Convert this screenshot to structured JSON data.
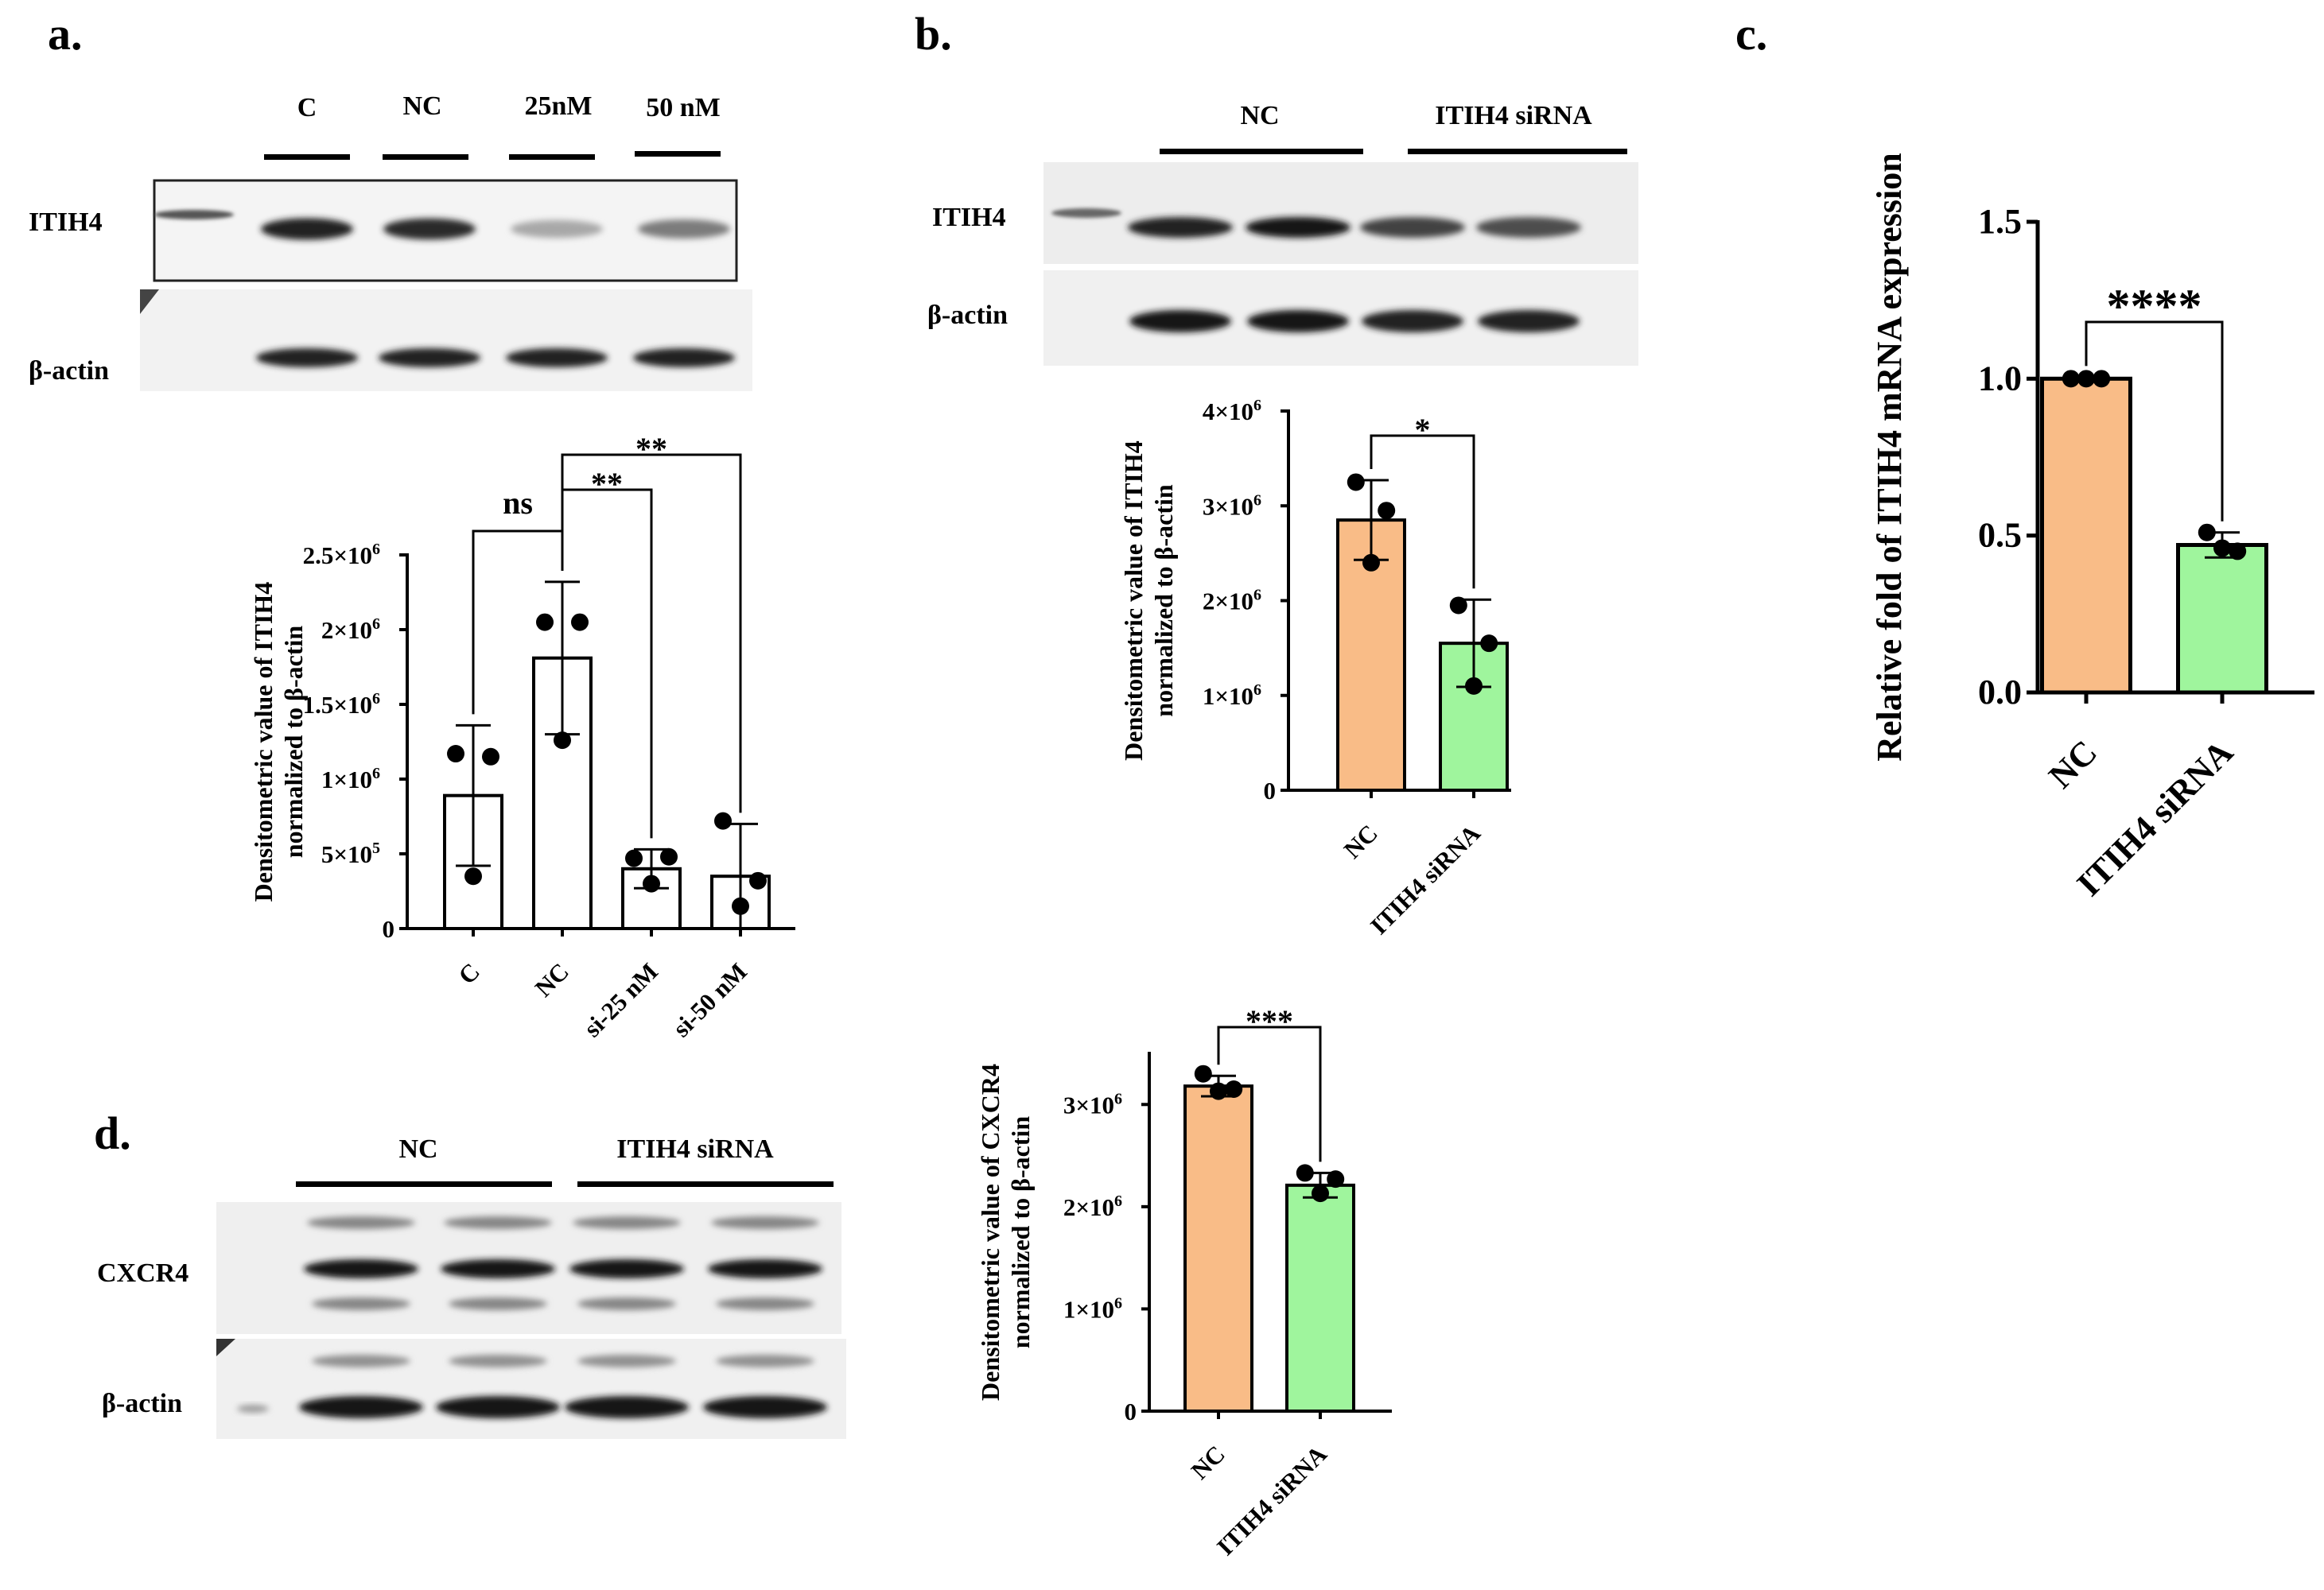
{
  "panels": {
    "a": {
      "letter": "a.",
      "blot": {
        "lanes": [
          "C",
          "NC",
          "25nM",
          "50 nM"
        ],
        "rows": [
          "ITIH4",
          "β-actin"
        ],
        "itih4_intensity": [
          0.9,
          0.85,
          0.3,
          0.5
        ],
        "actin_intensity": [
          0.9,
          0.9,
          0.9,
          0.9
        ]
      }
    },
    "b": {
      "letter": "b.",
      "blot": {
        "groups": [
          "NC",
          "ITIH4 siRNA"
        ],
        "rows": [
          "ITIH4",
          "β-actin"
        ],
        "itih4_intensity": [
          0.9,
          0.95,
          0.75,
          0.7
        ],
        "actin_intensity": [
          0.95,
          0.95,
          0.9,
          0.9
        ]
      }
    },
    "c": {
      "letter": "c."
    },
    "d": {
      "letter": "d.",
      "blot": {
        "groups": [
          "NC",
          "ITIH4 siRNA"
        ],
        "rows": [
          "CXCR4",
          "β-actin"
        ]
      }
    }
  },
  "chart_data": [
    {
      "id": "a",
      "type": "bar",
      "ylabel": [
        "Densitometric value of ITIH4",
        "normalized to β-actin"
      ],
      "categories": [
        "C",
        "NC",
        "si-25 nM",
        "si-50 nM"
      ],
      "values": [
        890000,
        1810000,
        400000,
        350000
      ],
      "errors": [
        470000,
        510000,
        130000,
        350000
      ],
      "points": [
        [
          1170000,
          1150000,
          350000
        ],
        [
          2050000,
          2050000,
          1260000
        ],
        [
          470000,
          480000,
          300000
        ],
        [
          720000,
          320000,
          150000
        ]
      ],
      "ylim": [
        0,
        2500000
      ],
      "yticks": [
        0,
        500000,
        1000000,
        1500000,
        2000000,
        2500000
      ],
      "ytick_labels": [
        "0",
        "5×10",
        "1×10",
        "1.5×10",
        "2×10",
        "2.5×10"
      ],
      "ytick_exps": [
        "",
        "5",
        "6",
        "6",
        "6",
        "6"
      ],
      "colors": [
        "#ffffff",
        "#ffffff",
        "#ffffff",
        "#ffffff"
      ],
      "comparisons": [
        {
          "from": 0,
          "to": 1,
          "label": "ns"
        },
        {
          "from": 1,
          "to": 2,
          "label": "**"
        },
        {
          "from": 1,
          "to": 3,
          "label": "**"
        }
      ]
    },
    {
      "id": "b",
      "type": "bar",
      "ylabel": [
        "Densitometric value of ITIH4",
        "normalized to β-actin"
      ],
      "categories": [
        "NC",
        "ITIH4 siRNA"
      ],
      "values": [
        2850000,
        1550000
      ],
      "errors": [
        420000,
        460000
      ],
      "points": [
        [
          3250000,
          2950000,
          2400000
        ],
        [
          1950000,
          1550000,
          1100000
        ]
      ],
      "ylim": [
        0,
        4000000
      ],
      "yticks": [
        0,
        1000000,
        2000000,
        3000000,
        4000000
      ],
      "ytick_labels": [
        "0",
        "1×10",
        "2×10",
        "3×10",
        "4×10"
      ],
      "ytick_exps": [
        "",
        "6",
        "6",
        "6",
        "6"
      ],
      "colors": [
        "#f9bc87",
        "#9ff59d"
      ],
      "comparisons": [
        {
          "from": 0,
          "to": 1,
          "label": "*"
        }
      ]
    },
    {
      "id": "c",
      "type": "bar",
      "ylabel": [
        "Relative fold of ITIH4 mRNA expression"
      ],
      "categories": [
        "NC",
        "ITIH4 siRNA"
      ],
      "values": [
        1.0,
        0.47
      ],
      "errors": [
        0.005,
        0.04
      ],
      "points": [
        [
          1.0,
          1.0,
          1.0
        ],
        [
          0.51,
          0.45,
          0.46
        ]
      ],
      "ylim": [
        0,
        1.5
      ],
      "yticks": [
        0,
        0.5,
        1.0,
        1.5
      ],
      "ytick_labels": [
        "0.0",
        "0.5",
        "1.0",
        "1.5"
      ],
      "ytick_exps": [
        "",
        "",
        "",
        ""
      ],
      "colors": [
        "#f9bc87",
        "#9ff59d"
      ],
      "comparisons": [
        {
          "from": 0,
          "to": 1,
          "label": "****"
        }
      ]
    },
    {
      "id": "d",
      "type": "bar",
      "ylabel": [
        "Densitometric value of CXCR4",
        "normalized to β-actin"
      ],
      "categories": [
        "NC",
        "ITIH4 siRNA"
      ],
      "values": [
        3180000,
        2210000
      ],
      "errors": [
        100000,
        120000
      ],
      "points": [
        [
          3300000,
          3150000,
          3130000
        ],
        [
          2330000,
          2270000,
          2130000
        ]
      ],
      "ylim": [
        0,
        3500000
      ],
      "yticks": [
        0,
        1000000,
        2000000,
        3000000
      ],
      "ytick_labels": [
        "0",
        "1×10",
        "2×10",
        "3×10"
      ],
      "ytick_exps": [
        "",
        "6",
        "6",
        "6"
      ],
      "colors": [
        "#f9bc87",
        "#9ff59d"
      ],
      "comparisons": [
        {
          "from": 0,
          "to": 1,
          "label": "***"
        }
      ]
    }
  ]
}
